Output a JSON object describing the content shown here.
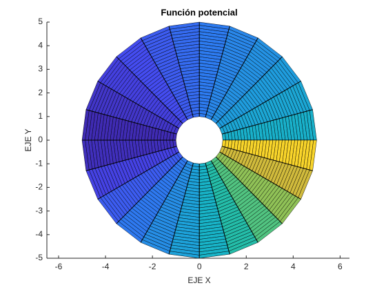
{
  "chart_data": {
    "type": "polar-surface",
    "title": "Función potencial",
    "xlabel": "EJE X",
    "ylabel": "EJE Y",
    "xlim": [
      -6.5,
      6.4
    ],
    "ylim": [
      -5,
      5
    ],
    "xticks": [
      -6,
      -4,
      -2,
      0,
      2,
      4,
      6
    ],
    "yticks": [
      -5,
      -4,
      -3,
      -2,
      -1,
      0,
      1,
      2,
      3,
      4,
      5
    ],
    "radius": [
      1,
      5
    ],
    "sectors": 24,
    "rings": 30
  }
}
